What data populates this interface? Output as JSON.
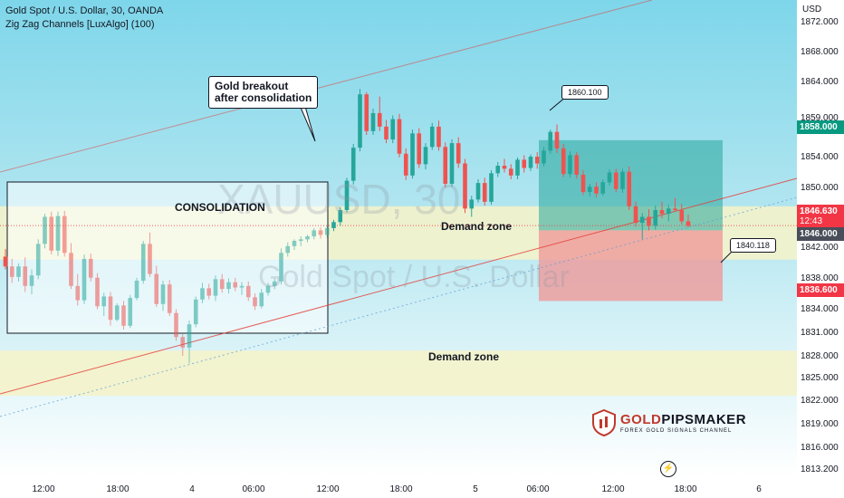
{
  "header": {
    "title": "Gold Spot / U.S. Dollar, 30, OANDA",
    "indicator": "Zig Zag Channels [LuxAlgo] (100)"
  },
  "watermark": {
    "symbol": "XAUUSD, 30",
    "name": "Gold Spot / U.S. Dollar"
  },
  "annotations": {
    "consolidation": "CONSOLIDATION",
    "demand_zone_upper": "Demand zone",
    "demand_zone_lower": "Demand zone",
    "breakout_line1": "Gold breakout",
    "breakout_line2": "after consolidation",
    "high_callout": "1860.100",
    "low_callout": "1840.118"
  },
  "price_tags": {
    "target": "1858.000",
    "current": "1846.630",
    "countdown": "12:43",
    "entry": "1846.000",
    "stop": "1836.600"
  },
  "logo": {
    "text_prefix": "GOLD",
    "text_suffix": "PIPSMAKER",
    "tagline": "FOREX GOLD SIGNALS CHANNEL"
  },
  "colors": {
    "background_top": "#7ed6ea",
    "background_bottom": "#ffffff",
    "bull": "#26a69a",
    "bear": "#ef5350",
    "demand_zone": "#f5f3c8",
    "target_box": "#26a69a",
    "stop_box": "#ef9a9a",
    "channel_line": "#e53935"
  },
  "chart_data": {
    "type": "candlestick",
    "title": "Gold Spot / U.S. Dollar, 30, OANDA",
    "axis": {
      "y_unit": "USD",
      "y_ticks": [
        "1872.000",
        "1868.000",
        "1864.000",
        "1859.000",
        "1854.000",
        "1850.000",
        "1842.000",
        "1838.000",
        "1834.000",
        "1831.000",
        "1828.000",
        "1825.000",
        "1822.000",
        "1819.000",
        "1816.000",
        "1813.200"
      ],
      "x_ticks": [
        "12:00",
        "18:00",
        "4",
        "06:00",
        "12:00",
        "18:00",
        "5",
        "06:00",
        "12:00",
        "18:00",
        "6"
      ]
    },
    "candles": [
      [
        1842.5,
        1843.5,
        1840.8,
        1841.2
      ],
      [
        1841.2,
        1842.2,
        1839.0,
        1839.8
      ],
      [
        1839.8,
        1841.6,
        1839.2,
        1841.2
      ],
      [
        1841.2,
        1842.4,
        1837.8,
        1838.6
      ],
      [
        1838.6,
        1840.8,
        1837.5,
        1840.0
      ],
      [
        1840.0,
        1844.8,
        1839.5,
        1844.2
      ],
      [
        1844.2,
        1848.2,
        1843.6,
        1847.8
      ],
      [
        1847.8,
        1848.5,
        1842.8,
        1843.3
      ],
      [
        1843.3,
        1848.5,
        1842.6,
        1847.9
      ],
      [
        1847.9,
        1848.6,
        1842.5,
        1843.0
      ],
      [
        1843.0,
        1844.3,
        1838.2,
        1838.6
      ],
      [
        1838.6,
        1840.2,
        1836.0,
        1836.7
      ],
      [
        1836.7,
        1842.8,
        1836.2,
        1842.2
      ],
      [
        1842.2,
        1842.9,
        1839.2,
        1839.7
      ],
      [
        1839.7,
        1840.3,
        1835.5,
        1835.9
      ],
      [
        1835.9,
        1837.7,
        1834.6,
        1837.2
      ],
      [
        1837.2,
        1837.8,
        1833.3,
        1834.1
      ],
      [
        1834.1,
        1836.3,
        1833.9,
        1836.0
      ],
      [
        1836.0,
        1836.6,
        1832.8,
        1833.3
      ],
      [
        1833.3,
        1837.4,
        1833.0,
        1837.0
      ],
      [
        1837.0,
        1839.7,
        1836.7,
        1839.3
      ],
      [
        1839.3,
        1844.6,
        1838.9,
        1844.2
      ],
      [
        1844.2,
        1845.7,
        1839.8,
        1840.2
      ],
      [
        1840.2,
        1841.3,
        1835.8,
        1836.2
      ],
      [
        1836.2,
        1839.3,
        1835.3,
        1838.8
      ],
      [
        1838.8,
        1839.4,
        1834.6,
        1835.0
      ],
      [
        1835.0,
        1835.5,
        1831.3,
        1831.8
      ],
      [
        1831.8,
        1832.2,
        1829.3,
        1830.4
      ],
      [
        1830.4,
        1834.0,
        1828.3,
        1833.5
      ],
      [
        1833.5,
        1837.2,
        1833.1,
        1836.8
      ],
      [
        1836.8,
        1839.0,
        1836.3,
        1838.3
      ],
      [
        1838.3,
        1838.9,
        1836.8,
        1837.3
      ],
      [
        1837.3,
        1840.0,
        1836.6,
        1839.5
      ],
      [
        1839.5,
        1840.2,
        1837.7,
        1838.2
      ],
      [
        1838.2,
        1839.6,
        1837.6,
        1839.1
      ],
      [
        1839.1,
        1839.7,
        1837.9,
        1838.4
      ],
      [
        1838.4,
        1839.1,
        1837.4,
        1838.6
      ],
      [
        1838.6,
        1839.2,
        1836.6,
        1837.1
      ],
      [
        1837.1,
        1837.6,
        1835.4,
        1835.9
      ],
      [
        1835.9,
        1838.2,
        1835.6,
        1837.7
      ],
      [
        1837.7,
        1839.0,
        1837.3,
        1838.6
      ],
      [
        1838.6,
        1839.6,
        1838.2,
        1839.2
      ],
      [
        1839.2,
        1843.6,
        1838.8,
        1843.0
      ],
      [
        1843.0,
        1844.4,
        1842.5,
        1843.9
      ],
      [
        1843.9,
        1844.8,
        1843.4,
        1844.6
      ],
      [
        1844.6,
        1845.2,
        1843.9,
        1844.8
      ],
      [
        1844.8,
        1845.4,
        1844.4,
        1845.2
      ],
      [
        1845.2,
        1846.3,
        1844.8,
        1846.0
      ],
      [
        1846.0,
        1846.4,
        1844.9,
        1845.4
      ],
      [
        1845.4,
        1846.6,
        1845.0,
        1846.3
      ],
      [
        1846.3,
        1847.4,
        1845.9,
        1847.1
      ],
      [
        1847.1,
        1849.1,
        1846.6,
        1848.7
      ],
      [
        1848.7,
        1853.0,
        1848.4,
        1852.6
      ],
      [
        1852.6,
        1857.5,
        1852.1,
        1857.0
      ],
      [
        1857.0,
        1864.8,
        1856.5,
        1864.1
      ],
      [
        1864.1,
        1864.4,
        1858.7,
        1859.2
      ],
      [
        1859.2,
        1862.2,
        1858.7,
        1861.6
      ],
      [
        1861.6,
        1863.8,
        1859.2,
        1859.8
      ],
      [
        1859.8,
        1860.7,
        1857.6,
        1858.1
      ],
      [
        1858.1,
        1861.3,
        1857.6,
        1860.8
      ],
      [
        1860.8,
        1861.5,
        1855.7,
        1856.2
      ],
      [
        1856.2,
        1856.9,
        1852.7,
        1853.3
      ],
      [
        1853.3,
        1859.4,
        1852.9,
        1858.9
      ],
      [
        1858.9,
        1859.6,
        1854.3,
        1854.8
      ],
      [
        1854.8,
        1857.6,
        1854.1,
        1857.1
      ],
      [
        1857.1,
        1860.3,
        1856.7,
        1859.8
      ],
      [
        1859.8,
        1860.6,
        1856.6,
        1857.1
      ],
      [
        1857.1,
        1857.7,
        1851.7,
        1852.2
      ],
      [
        1852.2,
        1858.1,
        1851.8,
        1857.6
      ],
      [
        1857.6,
        1858.4,
        1854.3,
        1854.9
      ],
      [
        1854.9,
        1855.5,
        1848.3,
        1848.9
      ],
      [
        1848.9,
        1850.6,
        1847.8,
        1850.1
      ],
      [
        1850.1,
        1852.8,
        1849.7,
        1852.3
      ],
      [
        1852.3,
        1853.0,
        1849.3,
        1849.8
      ],
      [
        1849.8,
        1854.0,
        1849.4,
        1853.6
      ],
      [
        1853.6,
        1855.1,
        1853.1,
        1854.6
      ],
      [
        1854.6,
        1855.5,
        1853.7,
        1854.2
      ],
      [
        1854.2,
        1854.8,
        1852.8,
        1853.3
      ],
      [
        1853.3,
        1855.7,
        1852.8,
        1855.4
      ],
      [
        1855.4,
        1856.0,
        1853.7,
        1854.3
      ],
      [
        1854.3,
        1856.1,
        1853.9,
        1855.8
      ],
      [
        1855.8,
        1856.4,
        1854.2,
        1854.9
      ],
      [
        1854.9,
        1857.1,
        1854.5,
        1856.6
      ],
      [
        1856.6,
        1859.4,
        1856.2,
        1859.1
      ],
      [
        1859.1,
        1860.1,
        1856.3,
        1856.9
      ],
      [
        1856.9,
        1857.5,
        1853.1,
        1853.5
      ],
      [
        1853.5,
        1856.5,
        1853.0,
        1856.0
      ],
      [
        1856.0,
        1856.4,
        1852.9,
        1853.4
      ],
      [
        1853.4,
        1854.0,
        1850.7,
        1851.1
      ],
      [
        1851.1,
        1852.2,
        1850.5,
        1851.8
      ],
      [
        1851.8,
        1852.4,
        1850.4,
        1850.9
      ],
      [
        1850.9,
        1852.8,
        1850.6,
        1852.4
      ],
      [
        1852.4,
        1854.1,
        1852.0,
        1853.7
      ],
      [
        1853.7,
        1854.2,
        1851.1,
        1851.5
      ],
      [
        1851.5,
        1854.2,
        1851.0,
        1853.8
      ],
      [
        1853.8,
        1854.5,
        1848.7,
        1849.2
      ],
      [
        1849.2,
        1849.8,
        1846.5,
        1847.0
      ],
      [
        1847.0,
        1848.3,
        1844.8,
        1847.8
      ],
      [
        1847.8,
        1848.8,
        1846.0,
        1846.6
      ],
      [
        1846.6,
        1849.3,
        1846.1,
        1848.7
      ],
      [
        1848.7,
        1849.8,
        1847.6,
        1848.2
      ],
      [
        1848.2,
        1849.4,
        1847.2,
        1848.9
      ],
      [
        1848.9,
        1850.3,
        1848.5,
        1848.7
      ],
      [
        1848.7,
        1849.5,
        1846.8,
        1847.2
      ],
      [
        1847.2,
        1848.1,
        1846.4,
        1846.6
      ]
    ],
    "zones": [
      {
        "label": "Demand zone",
        "from": 1842.1,
        "to": 1849.2
      },
      {
        "label": "Demand zone",
        "from": 1824.0,
        "to": 1830.0
      }
    ],
    "trade": {
      "entry": 1846.0,
      "target": 1858.0,
      "stop": 1836.6,
      "current": 1846.63
    },
    "grid": false
  }
}
